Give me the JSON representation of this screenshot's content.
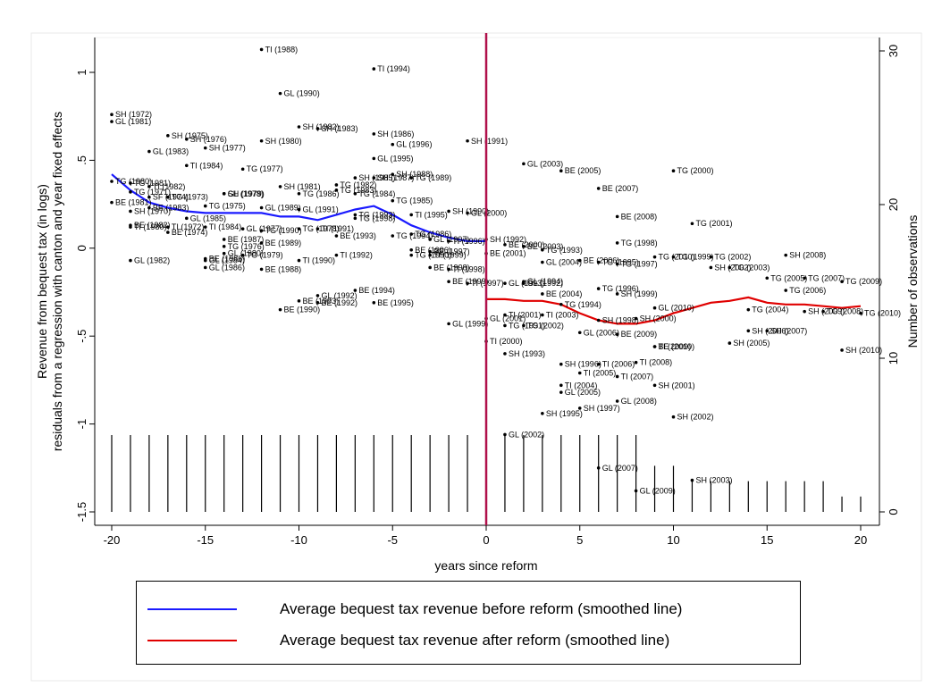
{
  "colors": {
    "before": "#1a1aff",
    "after": "#e00000",
    "reform_line": "#b0104a",
    "points": "#000000",
    "bars": "#000000"
  },
  "legend": {
    "before_label": "Average bequest tax revenue before reform (smoothed line)",
    "after_label": "Average bequest tax revenue after reform (smoothed line)",
    "placement": "bottom"
  },
  "chart_data": {
    "type": "scatter",
    "xlabel": "years since reform",
    "ylabel_line1": "Revenue from bequest tax (in logs)",
    "ylabel_line2": "residuals from a regression with canton and year fixed effects",
    "y2label": "Number of observations",
    "xlim": [
      -20,
      20
    ],
    "ylim": [
      -1.5,
      1.2
    ],
    "y2lim": [
      0,
      30
    ],
    "x_ticks": [
      "-20",
      "-15",
      "-10",
      "-5",
      "0",
      "5",
      "10",
      "15",
      "20"
    ],
    "y_ticks": [
      "-1.5",
      "-1",
      "-.5",
      "0",
      ".5",
      "1"
    ],
    "y2_ticks": [
      "0",
      "10",
      "20",
      "30"
    ],
    "grid": false,
    "reform_x": 0,
    "points": [
      {
        "x": -12,
        "y": 1.13,
        "label": "TI (1988)"
      },
      {
        "x": -6,
        "y": 1.02,
        "label": "TI (1994)"
      },
      {
        "x": -11,
        "y": 0.88,
        "label": "GL (1990)"
      },
      {
        "x": -20,
        "y": 0.76,
        "label": "SH (1972)"
      },
      {
        "x": -20,
        "y": 0.72,
        "label": "GL (1981)"
      },
      {
        "x": -10,
        "y": 0.69,
        "label": "SH (1982)"
      },
      {
        "x": -9,
        "y": 0.68,
        "label": "SH (1983)"
      },
      {
        "x": -6,
        "y": 0.65,
        "label": "SH (1986)"
      },
      {
        "x": -17,
        "y": 0.64,
        "label": "SH (1975)"
      },
      {
        "x": -16,
        "y": 0.62,
        "label": "SH (1976)"
      },
      {
        "x": -12,
        "y": 0.61,
        "label": "SH (1980)"
      },
      {
        "x": -1,
        "y": 0.61,
        "label": "SH (1991)"
      },
      {
        "x": -5,
        "y": 0.59,
        "label": "GL (1996)"
      },
      {
        "x": -15,
        "y": 0.57,
        "label": "SH (1977)"
      },
      {
        "x": -18,
        "y": 0.55,
        "label": "GL (1983)"
      },
      {
        "x": -6,
        "y": 0.51,
        "label": "GL (1995)"
      },
      {
        "x": 2,
        "y": 0.48,
        "label": "GL (2003)"
      },
      {
        "x": -16,
        "y": 0.47,
        "label": "TI (1984)"
      },
      {
        "x": -13,
        "y": 0.45,
        "label": "TG (1977)"
      },
      {
        "x": 4,
        "y": 0.44,
        "label": "BE (2005)"
      },
      {
        "x": 10,
        "y": 0.44,
        "label": "TG (2000)"
      },
      {
        "x": -5,
        "y": 0.42,
        "label": "SH (1988)"
      },
      {
        "x": -7,
        "y": 0.4,
        "label": "SH (1985)"
      },
      {
        "x": -6,
        "y": 0.4,
        "label": "SH (1987)"
      },
      {
        "x": -4,
        "y": 0.4,
        "label": "TG (1989)"
      },
      {
        "x": -20,
        "y": 0.38,
        "label": "TG (1980)"
      },
      {
        "x": -19,
        "y": 0.37,
        "label": "TG (1981)"
      },
      {
        "x": -18,
        "y": 0.35,
        "label": "TI (1982)"
      },
      {
        "x": -8,
        "y": 0.36,
        "label": "TG (1982)"
      },
      {
        "x": -11,
        "y": 0.35,
        "label": "SH (1981)"
      },
      {
        "x": 6,
        "y": 0.34,
        "label": "BE (2007)"
      },
      {
        "x": -19,
        "y": 0.32,
        "label": "TG (1971)"
      },
      {
        "x": -8,
        "y": 0.33,
        "label": "TG (1983)"
      },
      {
        "x": -14,
        "y": 0.31,
        "label": "SH (1979)"
      },
      {
        "x": -14,
        "y": 0.31,
        "label": "GL (1978)"
      },
      {
        "x": -10,
        "y": 0.31,
        "label": "TG (1986)"
      },
      {
        "x": -7,
        "y": 0.31,
        "label": "TG (1984)"
      },
      {
        "x": -18,
        "y": 0.29,
        "label": "SF (1974)"
      },
      {
        "x": -17,
        "y": 0.29,
        "label": "TG (1973)"
      },
      {
        "x": -5,
        "y": 0.27,
        "label": "TG (1985)"
      },
      {
        "x": -20,
        "y": 0.26,
        "label": "BE (1981)"
      },
      {
        "x": -15,
        "y": 0.24,
        "label": "TG (1975)"
      },
      {
        "x": -12,
        "y": 0.23,
        "label": "GL (1989)"
      },
      {
        "x": -10,
        "y": 0.22,
        "label": "GL (1991)"
      },
      {
        "x": -18,
        "y": 0.23,
        "label": "BE (1983)"
      },
      {
        "x": -19,
        "y": 0.21,
        "label": "SH (1970)"
      },
      {
        "x": -2,
        "y": 0.21,
        "label": "SH (1990)"
      },
      {
        "x": -1,
        "y": 0.2,
        "label": "GL (2000)"
      },
      {
        "x": -7,
        "y": 0.19,
        "label": "TG (1993)"
      },
      {
        "x": -4,
        "y": 0.19,
        "label": "TI (1995)"
      },
      {
        "x": -16,
        "y": 0.17,
        "label": "GL (1985)"
      },
      {
        "x": -7,
        "y": 0.17,
        "label": "TG (1998)"
      },
      {
        "x": 7,
        "y": 0.18,
        "label": "BE (2008)"
      },
      {
        "x": 11,
        "y": 0.14,
        "label": "TG (2001)"
      },
      {
        "x": -19,
        "y": 0.13,
        "label": "BE (1982)"
      },
      {
        "x": -19,
        "y": 0.12,
        "label": "TI (1980)"
      },
      {
        "x": -17,
        "y": 0.12,
        "label": "TI (1972)"
      },
      {
        "x": -15,
        "y": 0.12,
        "label": "TI (1984)"
      },
      {
        "x": -13,
        "y": 0.11,
        "label": "GL (1977)"
      },
      {
        "x": -10,
        "y": 0.11,
        "label": "TG (1978)"
      },
      {
        "x": -9,
        "y": 0.11,
        "label": "TI (1991)"
      },
      {
        "x": -12,
        "y": 0.1,
        "label": "TG (1990)"
      },
      {
        "x": -17,
        "y": 0.09,
        "label": "BE (1974)"
      },
      {
        "x": -8,
        "y": 0.07,
        "label": "BE (1993)"
      },
      {
        "x": -5,
        "y": 0.07,
        "label": "TG (1994)"
      },
      {
        "x": -4,
        "y": 0.08,
        "label": "TG (1986)"
      },
      {
        "x": -3,
        "y": 0.05,
        "label": "GL (1997)"
      },
      {
        "x": -2,
        "y": 0.04,
        "label": "TI (1996)"
      },
      {
        "x": 0,
        "y": 0.05,
        "label": "SH (1992)"
      },
      {
        "x": -14,
        "y": 0.05,
        "label": "BE (1987)"
      },
      {
        "x": -12,
        "y": 0.03,
        "label": "BE (1989)"
      },
      {
        "x": -14,
        "y": 0.01,
        "label": "TG (1976)"
      },
      {
        "x": 1,
        "y": 0.02,
        "label": "BE (2000)"
      },
      {
        "x": 2,
        "y": 0.01,
        "label": "BE (2003)"
      },
      {
        "x": -4,
        "y": -0.01,
        "label": "BE (1996)"
      },
      {
        "x": -3,
        "y": -0.02,
        "label": "BE (1997)"
      },
      {
        "x": 3,
        "y": -0.01,
        "label": "TG (1993)"
      },
      {
        "x": 7,
        "y": 0.03,
        "label": "TG (1998)"
      },
      {
        "x": -14,
        "y": -0.03,
        "label": "GL (1980)"
      },
      {
        "x": -13,
        "y": -0.04,
        "label": "TG (1979)"
      },
      {
        "x": -8,
        "y": -0.04,
        "label": "TI (1992)"
      },
      {
        "x": -4,
        "y": -0.04,
        "label": "TG (1990)"
      },
      {
        "x": -3,
        "y": -0.04,
        "label": "TI (1999)"
      },
      {
        "x": 0,
        "y": -0.03,
        "label": "BE (2001)"
      },
      {
        "x": 9,
        "y": -0.05,
        "label": "TG (2010)"
      },
      {
        "x": 10,
        "y": -0.05,
        "label": "TG (1999)"
      },
      {
        "x": 12,
        "y": -0.05,
        "label": "TG (2002)"
      },
      {
        "x": 16,
        "y": -0.04,
        "label": "SH (2008)"
      },
      {
        "x": -19,
        "y": -0.07,
        "label": "GL (1982)"
      },
      {
        "x": -15,
        "y": -0.07,
        "label": "GL (1984)"
      },
      {
        "x": -15,
        "y": -0.06,
        "label": "BE (1986)"
      },
      {
        "x": -10,
        "y": -0.07,
        "label": "TI (1990)"
      },
      {
        "x": 3,
        "y": -0.08,
        "label": "GL (2004)"
      },
      {
        "x": 5,
        "y": -0.07,
        "label": "BE (2006)"
      },
      {
        "x": 6,
        "y": -0.08,
        "label": "TG (1995)"
      },
      {
        "x": 7,
        "y": -0.09,
        "label": "TG (1997)"
      },
      {
        "x": -15,
        "y": -0.11,
        "label": "GL (1986)"
      },
      {
        "x": -12,
        "y": -0.12,
        "label": "BE (1988)"
      },
      {
        "x": -3,
        "y": -0.11,
        "label": "BE (1998)"
      },
      {
        "x": -2,
        "y": -0.12,
        "label": "TI (1998)"
      },
      {
        "x": 12,
        "y": -0.11,
        "label": "SH (2002)"
      },
      {
        "x": 13,
        "y": -0.11,
        "label": "TG (2003)"
      },
      {
        "x": 15,
        "y": -0.17,
        "label": "TG (2005)"
      },
      {
        "x": 17,
        "y": -0.17,
        "label": "TG (2007)"
      },
      {
        "x": 19,
        "y": -0.19,
        "label": "TG (2009)"
      },
      {
        "x": -2,
        "y": -0.19,
        "label": "BE (1999)"
      },
      {
        "x": -1,
        "y": -0.2,
        "label": "TI (1997)"
      },
      {
        "x": 1,
        "y": -0.2,
        "label": "GL (1993)"
      },
      {
        "x": 2,
        "y": -0.19,
        "label": "GL (1994)"
      },
      {
        "x": 2,
        "y": -0.2,
        "label": "GL (1992)"
      },
      {
        "x": 16,
        "y": -0.24,
        "label": "TG (2006)"
      },
      {
        "x": -7,
        "y": -0.24,
        "label": "BE (1994)"
      },
      {
        "x": -9,
        "y": -0.27,
        "label": "GL (1992)"
      },
      {
        "x": -10,
        "y": -0.3,
        "label": "BE (1993)"
      },
      {
        "x": -9,
        "y": -0.31,
        "label": "BE (1992)"
      },
      {
        "x": -6,
        "y": -0.31,
        "label": "BE (1995)"
      },
      {
        "x": -11,
        "y": -0.35,
        "label": "BE (1990)"
      },
      {
        "x": 3,
        "y": -0.26,
        "label": "BE (2004)"
      },
      {
        "x": 6,
        "y": -0.23,
        "label": "TG (1996)"
      },
      {
        "x": 7,
        "y": -0.26,
        "label": "SH (1999)"
      },
      {
        "x": 4,
        "y": -0.32,
        "label": "TG (1994)"
      },
      {
        "x": 9,
        "y": -0.34,
        "label": "GL (2010)"
      },
      {
        "x": 14,
        "y": -0.35,
        "label": "TG (2004)"
      },
      {
        "x": 17,
        "y": -0.36,
        "label": "SH (2009)"
      },
      {
        "x": 18,
        "y": -0.36,
        "label": "TG (2008)"
      },
      {
        "x": 20,
        "y": -0.37,
        "label": "TG (2010)"
      },
      {
        "x": 0,
        "y": -0.4,
        "label": "GL (2001)"
      },
      {
        "x": 1,
        "y": -0.38,
        "label": "TI (2001)"
      },
      {
        "x": 3,
        "y": -0.38,
        "label": "TI (2003)"
      },
      {
        "x": 6,
        "y": -0.41,
        "label": "SH (1998)"
      },
      {
        "x": 8,
        "y": -0.4,
        "label": "SH (2000)"
      },
      {
        "x": -2,
        "y": -0.43,
        "label": "GL (1999)"
      },
      {
        "x": 1,
        "y": -0.44,
        "label": "TG (1991)"
      },
      {
        "x": 2,
        "y": -0.44,
        "label": "TG (2002)"
      },
      {
        "x": 5,
        "y": -0.48,
        "label": "GL (2006)"
      },
      {
        "x": 7,
        "y": -0.49,
        "label": "BE (2009)"
      },
      {
        "x": 14,
        "y": -0.47,
        "label": "SH (2006)"
      },
      {
        "x": 15,
        "y": -0.47,
        "label": "SH (2007)"
      },
      {
        "x": 0,
        "y": -0.53,
        "label": "TI (2000)"
      },
      {
        "x": 9,
        "y": -0.56,
        "label": "TI (2009)"
      },
      {
        "x": 9,
        "y": -0.56,
        "label": "BE (2010)"
      },
      {
        "x": 13,
        "y": -0.54,
        "label": "SH (2005)"
      },
      {
        "x": 19,
        "y": -0.58,
        "label": "SH (2010)"
      },
      {
        "x": 1,
        "y": -0.6,
        "label": "SH (1993)"
      },
      {
        "x": 4,
        "y": -0.66,
        "label": "SH (1996)"
      },
      {
        "x": 6,
        "y": -0.66,
        "label": "TI (2006)"
      },
      {
        "x": 8,
        "y": -0.65,
        "label": "TI (2008)"
      },
      {
        "x": 5,
        "y": -0.71,
        "label": "TI (2005)"
      },
      {
        "x": 7,
        "y": -0.73,
        "label": "TI (2007)"
      },
      {
        "x": 4,
        "y": -0.78,
        "label": "TI (2004)"
      },
      {
        "x": 9,
        "y": -0.78,
        "label": "SH (2001)"
      },
      {
        "x": 4,
        "y": -0.82,
        "label": "GL (2005)"
      },
      {
        "x": 7,
        "y": -0.87,
        "label": "GL (2008)"
      },
      {
        "x": 5,
        "y": -0.91,
        "label": "SH (1997)"
      },
      {
        "x": 3,
        "y": -0.94,
        "label": "SH (1995)"
      },
      {
        "x": 10,
        "y": -0.96,
        "label": "SH (2002)"
      },
      {
        "x": 1,
        "y": -1.06,
        "label": "GL (2002)"
      },
      {
        "x": 6,
        "y": -1.25,
        "label": "GL (2007)"
      },
      {
        "x": 8,
        "y": -1.38,
        "label": "GL (2009)"
      },
      {
        "x": 11,
        "y": -1.32,
        "label": "SH (2003)"
      }
    ],
    "series": [
      {
        "name": "Average bequest tax revenue before reform (smoothed line)",
        "x": [
          -20,
          -19,
          -18,
          -17,
          -16,
          -15,
          -14,
          -13,
          -12,
          -11,
          -10,
          -9,
          -8,
          -7,
          -6,
          -5,
          -4,
          -3,
          -2,
          -1,
          0
        ],
        "y": [
          0.42,
          0.33,
          0.26,
          0.23,
          0.21,
          0.2,
          0.2,
          0.2,
          0.2,
          0.18,
          0.18,
          0.16,
          0.19,
          0.22,
          0.24,
          0.19,
          0.13,
          0.09,
          0.06,
          0.04,
          0.04
        ]
      },
      {
        "name": "Average bequest tax revenue after reform (smoothed line)",
        "x": [
          0,
          1,
          2,
          3,
          4,
          5,
          6,
          7,
          8,
          9,
          10,
          11,
          12,
          13,
          14,
          15,
          16,
          17,
          18,
          19,
          20
        ],
        "y": [
          -0.29,
          -0.29,
          -0.3,
          -0.3,
          -0.32,
          -0.37,
          -0.41,
          -0.43,
          -0.43,
          -0.41,
          -0.37,
          -0.34,
          -0.31,
          -0.3,
          -0.28,
          -0.31,
          -0.32,
          -0.32,
          -0.33,
          -0.34,
          -0.33
        ]
      }
    ],
    "observations": {
      "x": [
        -20,
        -19,
        -18,
        -17,
        -16,
        -15,
        -14,
        -13,
        -12,
        -11,
        -10,
        -9,
        -8,
        -7,
        -6,
        -5,
        -4,
        -3,
        -2,
        -1,
        0,
        1,
        2,
        3,
        4,
        5,
        6,
        7,
        8,
        9,
        10,
        11,
        12,
        13,
        14,
        15,
        16,
        17,
        18,
        19,
        20
      ],
      "counts": [
        5,
        5,
        5,
        5,
        5,
        5,
        5,
        5,
        5,
        5,
        5,
        5,
        5,
        5,
        5,
        5,
        5,
        5,
        5,
        5,
        5,
        5,
        5,
        5,
        5,
        5,
        5,
        5,
        5,
        3,
        3,
        2,
        2,
        2,
        2,
        2,
        2,
        2,
        2,
        1,
        1
      ]
    }
  }
}
